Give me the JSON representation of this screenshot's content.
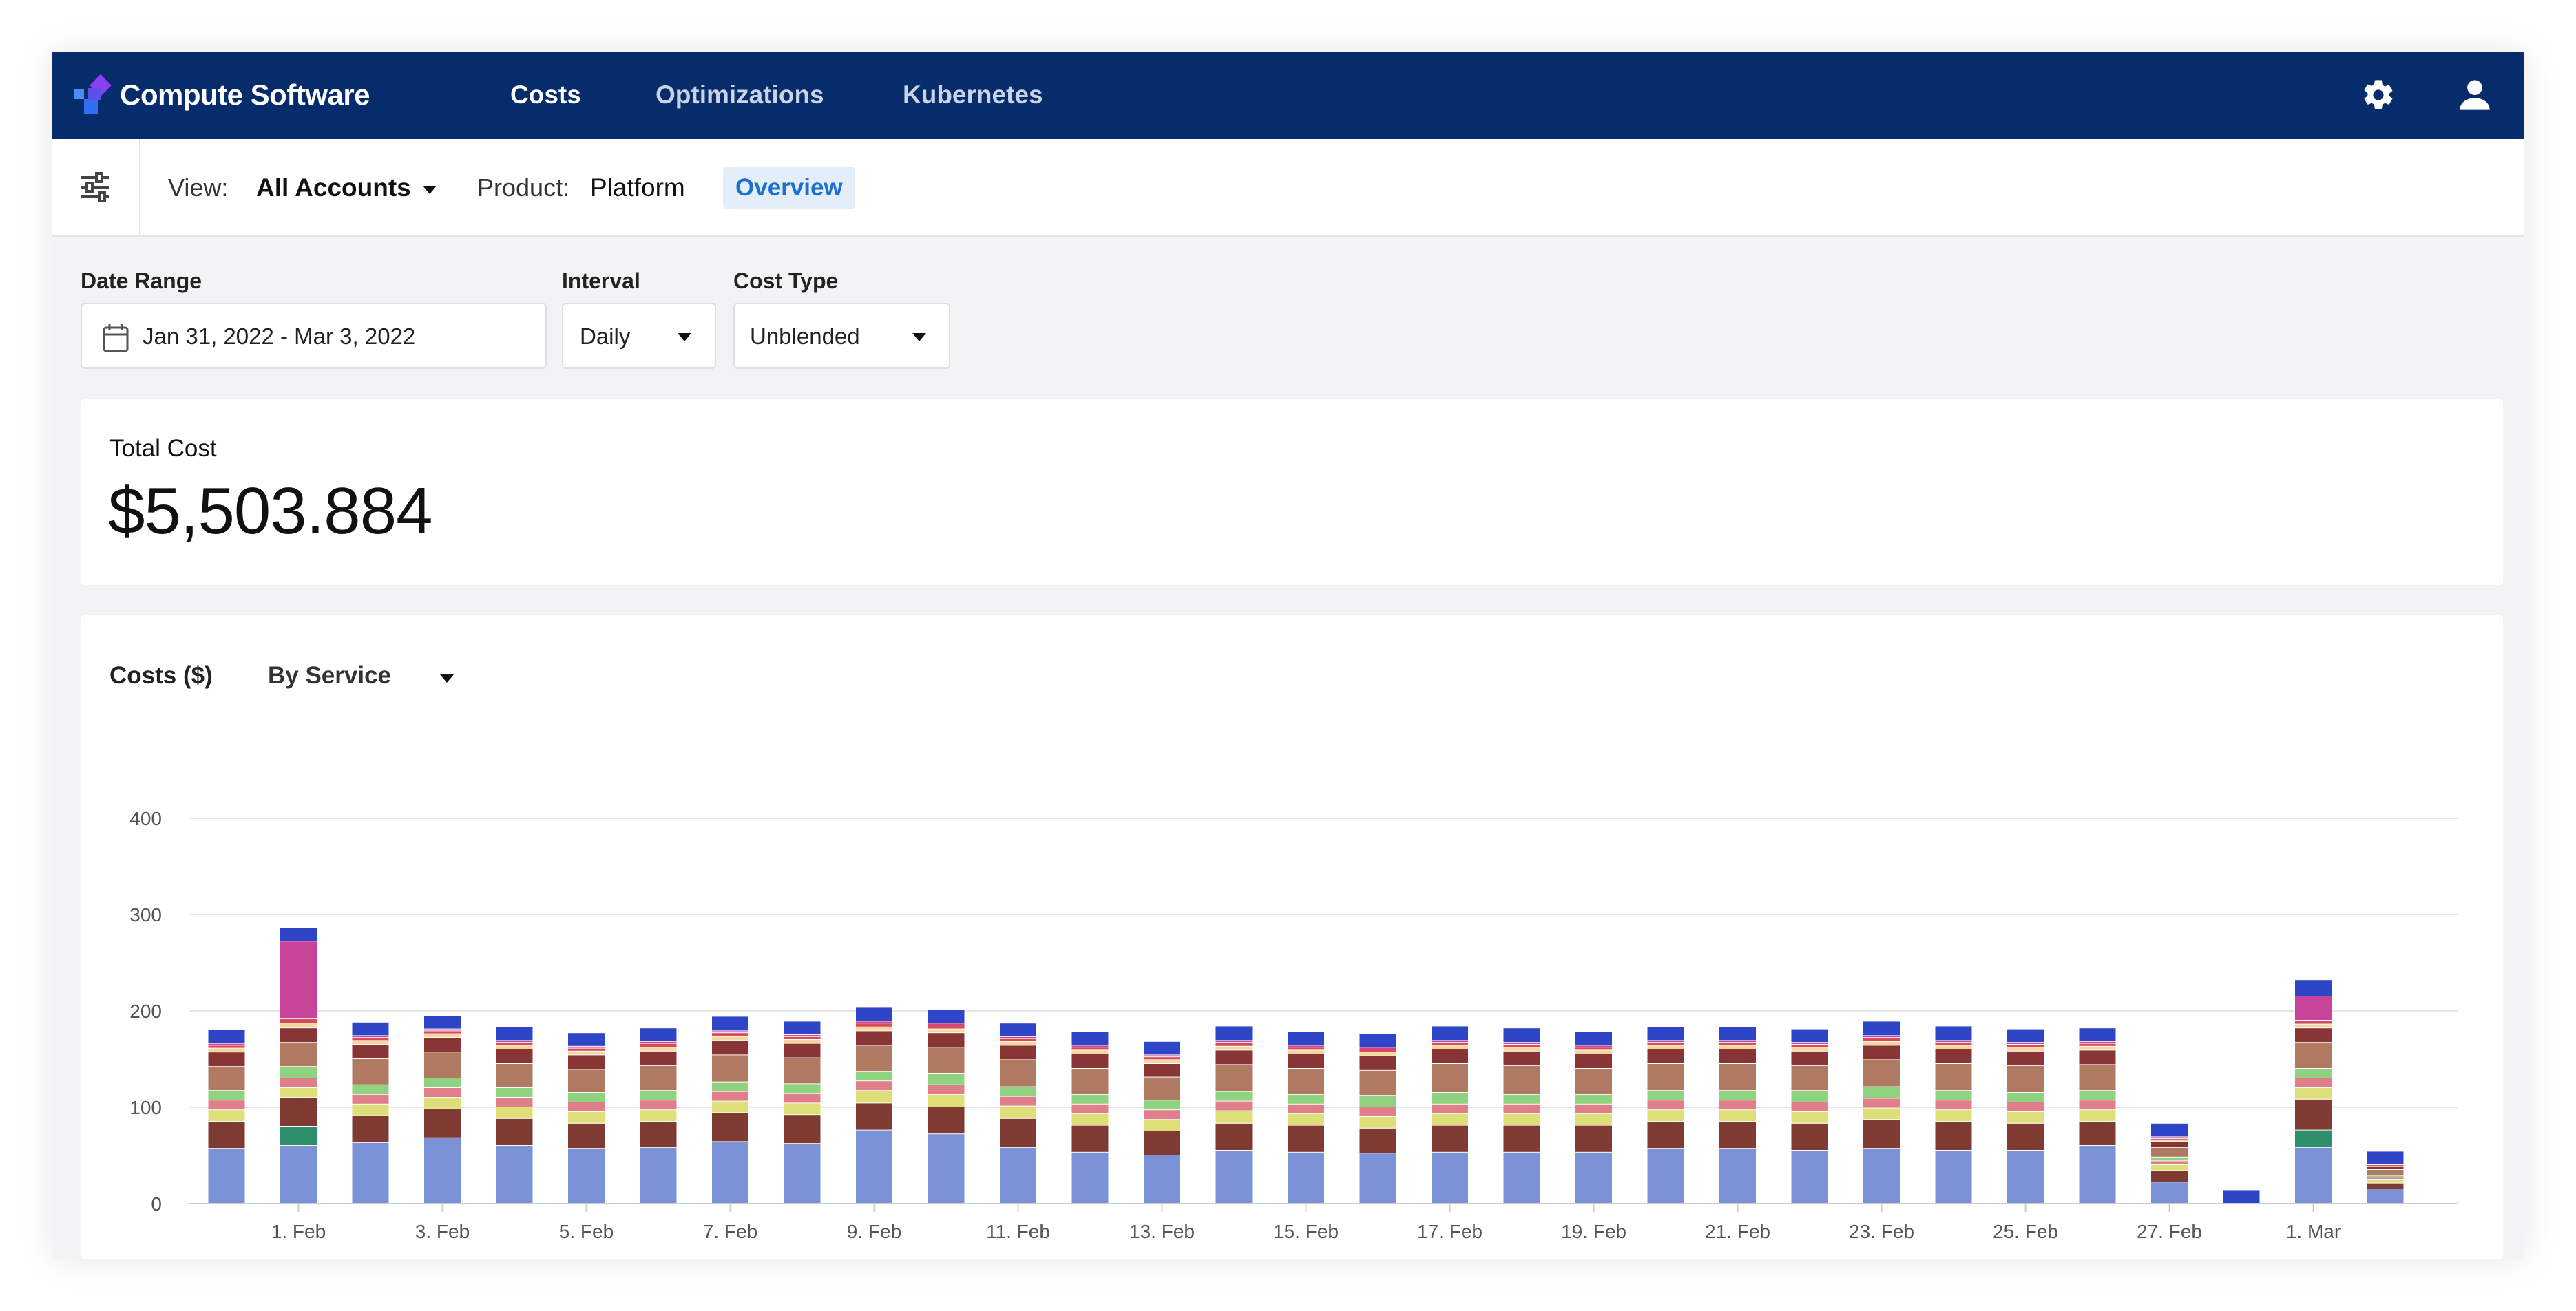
{
  "app": {
    "brand": "Compute Software",
    "nav": [
      {
        "label": "Costs",
        "active": true
      },
      {
        "label": "Optimizations",
        "active": false
      },
      {
        "label": "Kubernetes",
        "active": false
      }
    ],
    "icons": {
      "settings": "gear-icon",
      "user": "user-icon",
      "filter": "sliders-icon",
      "calendar": "calendar-icon"
    }
  },
  "subbar": {
    "view_label": "View:",
    "view_value": "All Accounts",
    "product_label": "Product:",
    "product_value": "Platform",
    "overview_label": "Overview"
  },
  "controls": {
    "date_range_label": "Date Range",
    "date_range_value": "Jan 31, 2022 - Mar 3, 2022",
    "interval_label": "Interval",
    "interval_value": "Daily",
    "cost_type_label": "Cost Type",
    "cost_type_value": "Unblended"
  },
  "total": {
    "label": "Total Cost",
    "value": "$5,503.884"
  },
  "chart_header": {
    "title": "Costs ($)",
    "group_by": "By Service"
  },
  "colors": {
    "nav_bg": "#062c6b",
    "accent": "#1d6fd1",
    "segments": [
      "#7b93d6",
      "#2f8f6b",
      "#7f3a32",
      "#dfdf7a",
      "#e07f8a",
      "#8fd27f",
      "#b07a62",
      "#8a3535",
      "#f5d6a0",
      "#d94a5a",
      "#c8449a",
      "#2f45c8"
    ]
  },
  "chart_data": {
    "type": "bar",
    "stacked": true,
    "ylim": [
      0,
      400
    ],
    "yticks": [
      0,
      100,
      200,
      300,
      400
    ],
    "xticks": [
      {
        "label": "1. Feb",
        "index": 1
      },
      {
        "label": "3. Feb",
        "index": 3
      },
      {
        "label": "5. Feb",
        "index": 5
      },
      {
        "label": "7. Feb",
        "index": 7
      },
      {
        "label": "9. Feb",
        "index": 9
      },
      {
        "label": "11. Feb",
        "index": 11
      },
      {
        "label": "13. Feb",
        "index": 13
      },
      {
        "label": "15. Feb",
        "index": 15
      },
      {
        "label": "17. Feb",
        "index": 17
      },
      {
        "label": "19. Feb",
        "index": 19
      },
      {
        "label": "21. Feb",
        "index": 21
      },
      {
        "label": "23. Feb",
        "index": 23
      },
      {
        "label": "25. Feb",
        "index": 25
      },
      {
        "label": "27. Feb",
        "index": 27
      },
      {
        "label": "1. Mar",
        "index": 29
      }
    ],
    "categories": [
      "31. Jan",
      "1. Feb",
      "2. Feb",
      "3. Feb",
      "4. Feb",
      "5. Feb",
      "6. Feb",
      "7. Feb",
      "8. Feb",
      "9. Feb",
      "10. Feb",
      "11. Feb",
      "12. Feb",
      "13. Feb",
      "14. Feb",
      "15. Feb",
      "16. Feb",
      "17. Feb",
      "18. Feb",
      "19. Feb",
      "20. Feb",
      "21. Feb",
      "22. Feb",
      "23. Feb",
      "24. Feb",
      "25. Feb",
      "26. Feb",
      "27. Feb",
      "28. Feb",
      "1. Mar",
      "2. Mar"
    ],
    "segments": [
      [
        57,
        0,
        28,
        12,
        10,
        10,
        25,
        15,
        4,
        3,
        2,
        14
      ],
      [
        60,
        20,
        30,
        10,
        10,
        12,
        25,
        15,
        5,
        5,
        80,
        14
      ],
      [
        63,
        0,
        28,
        12,
        10,
        10,
        27,
        15,
        4,
        3,
        2,
        14
      ],
      [
        68,
        0,
        30,
        12,
        10,
        10,
        27,
        15,
        4,
        3,
        2,
        14
      ],
      [
        60,
        0,
        28,
        12,
        10,
        10,
        25,
        15,
        4,
        3,
        2,
        14
      ],
      [
        57,
        0,
        26,
        12,
        10,
        10,
        24,
        15,
        4,
        3,
        2,
        14
      ],
      [
        58,
        0,
        27,
        12,
        10,
        10,
        26,
        15,
        4,
        4,
        2,
        14
      ],
      [
        64,
        0,
        30,
        12,
        10,
        10,
        28,
        15,
        4,
        4,
        2,
        15
      ],
      [
        62,
        0,
        30,
        12,
        10,
        10,
        27,
        15,
        4,
        3,
        2,
        14
      ],
      [
        76,
        0,
        28,
        13,
        10,
        10,
        27,
        15,
        4,
        4,
        2,
        15
      ],
      [
        72,
        0,
        28,
        13,
        10,
        12,
        27,
        15,
        4,
        4,
        2,
        14
      ],
      [
        58,
        0,
        30,
        13,
        10,
        10,
        28,
        15,
        4,
        3,
        2,
        14
      ],
      [
        53,
        0,
        28,
        12,
        10,
        10,
        27,
        15,
        4,
        3,
        2,
        14
      ],
      [
        50,
        0,
        25,
        12,
        10,
        10,
        24,
        14,
        4,
        3,
        2,
        14
      ],
      [
        55,
        0,
        28,
        13,
        10,
        10,
        28,
        15,
        4,
        4,
        2,
        15
      ],
      [
        53,
        0,
        28,
        12,
        10,
        10,
        27,
        15,
        4,
        3,
        2,
        14
      ],
      [
        52,
        0,
        26,
        12,
        10,
        12,
        26,
        15,
        4,
        3,
        2,
        14
      ],
      [
        53,
        0,
        28,
        12,
        10,
        12,
        30,
        15,
        4,
        3,
        2,
        15
      ],
      [
        53,
        0,
        28,
        12,
        10,
        10,
        30,
        15,
        4,
        3,
        2,
        15
      ],
      [
        53,
        0,
        28,
        12,
        10,
        10,
        27,
        15,
        4,
        3,
        2,
        14
      ],
      [
        57,
        0,
        28,
        12,
        10,
        10,
        28,
        15,
        4,
        3,
        2,
        14
      ],
      [
        57,
        0,
        28,
        12,
        10,
        10,
        28,
        15,
        4,
        3,
        2,
        14
      ],
      [
        55,
        0,
        28,
        12,
        10,
        12,
        26,
        15,
        4,
        3,
        2,
        14
      ],
      [
        57,
        0,
        30,
        12,
        10,
        12,
        28,
        15,
        4,
        4,
        2,
        15
      ],
      [
        55,
        0,
        30,
        12,
        10,
        10,
        28,
        15,
        4,
        3,
        2,
        15
      ],
      [
        55,
        0,
        28,
        12,
        10,
        10,
        28,
        15,
        4,
        3,
        2,
        14
      ],
      [
        60,
        0,
        25,
        12,
        10,
        10,
        27,
        15,
        4,
        3,
        2,
        14
      ],
      [
        22,
        0,
        12,
        6,
        4,
        4,
        10,
        6,
        2,
        1,
        2,
        14
      ],
      [
        0,
        0,
        0,
        0,
        0,
        0,
        0,
        0,
        0,
        0,
        0,
        14
      ],
      [
        58,
        18,
        32,
        12,
        10,
        10,
        27,
        15,
        4,
        4,
        25,
        17
      ],
      [
        15,
        0,
        6,
        4,
        2,
        2,
        6,
        3,
        1,
        1,
        0,
        14
      ]
    ]
  }
}
